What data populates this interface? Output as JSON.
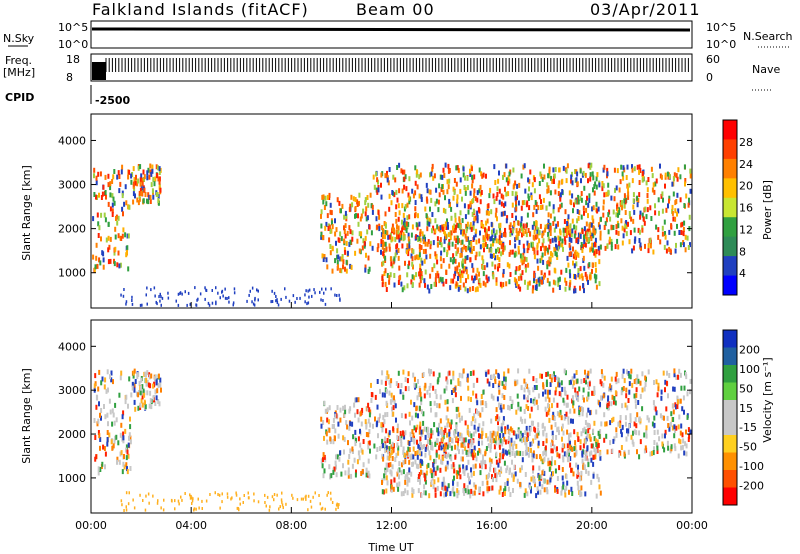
{
  "header": {
    "station": "Falkland Islands (fitACF)",
    "beam": "Beam 00",
    "date": "03/Apr/2011"
  },
  "strips": {
    "nsky_label": "N.Sky",
    "nsky_ticks": [
      "10^5",
      "10^0"
    ],
    "nsearch_label": "N.Search",
    "nsearch_ticks": [
      "10^5",
      "10^0"
    ],
    "freq_label": "Freq.",
    "freq_unit": "[MHz]",
    "freq_ticks": [
      "18",
      "8"
    ],
    "nave_label": "Nave",
    "nave_ticks": [
      "60",
      "0"
    ],
    "cpid_label": "CPID",
    "cpid_value": "-2500"
  },
  "chart_data": [
    {
      "type": "heatmap",
      "ylabel": "Slant Range [km]",
      "y_ticks": [
        1000,
        2000,
        3000,
        4000
      ],
      "ylim": [
        200,
        4600
      ],
      "colorbar": {
        "label": "Power [dB]",
        "ticks": [
          "28",
          "24",
          "20",
          "16",
          "12",
          "8",
          "4"
        ],
        "colors": [
          "#ff0000",
          "#ff4000",
          "#ff8000",
          "#ffc000",
          "#c8e632",
          "#30a040",
          "#2e8b57",
          "#2040c0",
          "#0000ff"
        ]
      }
    },
    {
      "type": "heatmap",
      "ylabel": "Slant Range [km]",
      "y_ticks": [
        1000,
        2000,
        3000,
        4000
      ],
      "ylim": [
        200,
        4600
      ],
      "xlabel": "Time UT",
      "x_ticks": [
        "00:00",
        "04:00",
        "08:00",
        "12:00",
        "16:00",
        "20:00",
        "00:00"
      ],
      "colorbar": {
        "label": "Velocity [m s⁻¹]",
        "ticks": [
          "200",
          "100",
          "50",
          "15",
          "-15",
          "-50",
          "-100",
          "-200"
        ],
        "colors": [
          "#1030c0",
          "#2060a0",
          "#30a040",
          "#60d040",
          "#c8c8c8",
          "#c8c8c8",
          "#ffd020",
          "#ff9000",
          "#ff5000",
          "#ff0000"
        ]
      }
    }
  ],
  "colors": {
    "gate_fill": "#c8c8c8"
  }
}
